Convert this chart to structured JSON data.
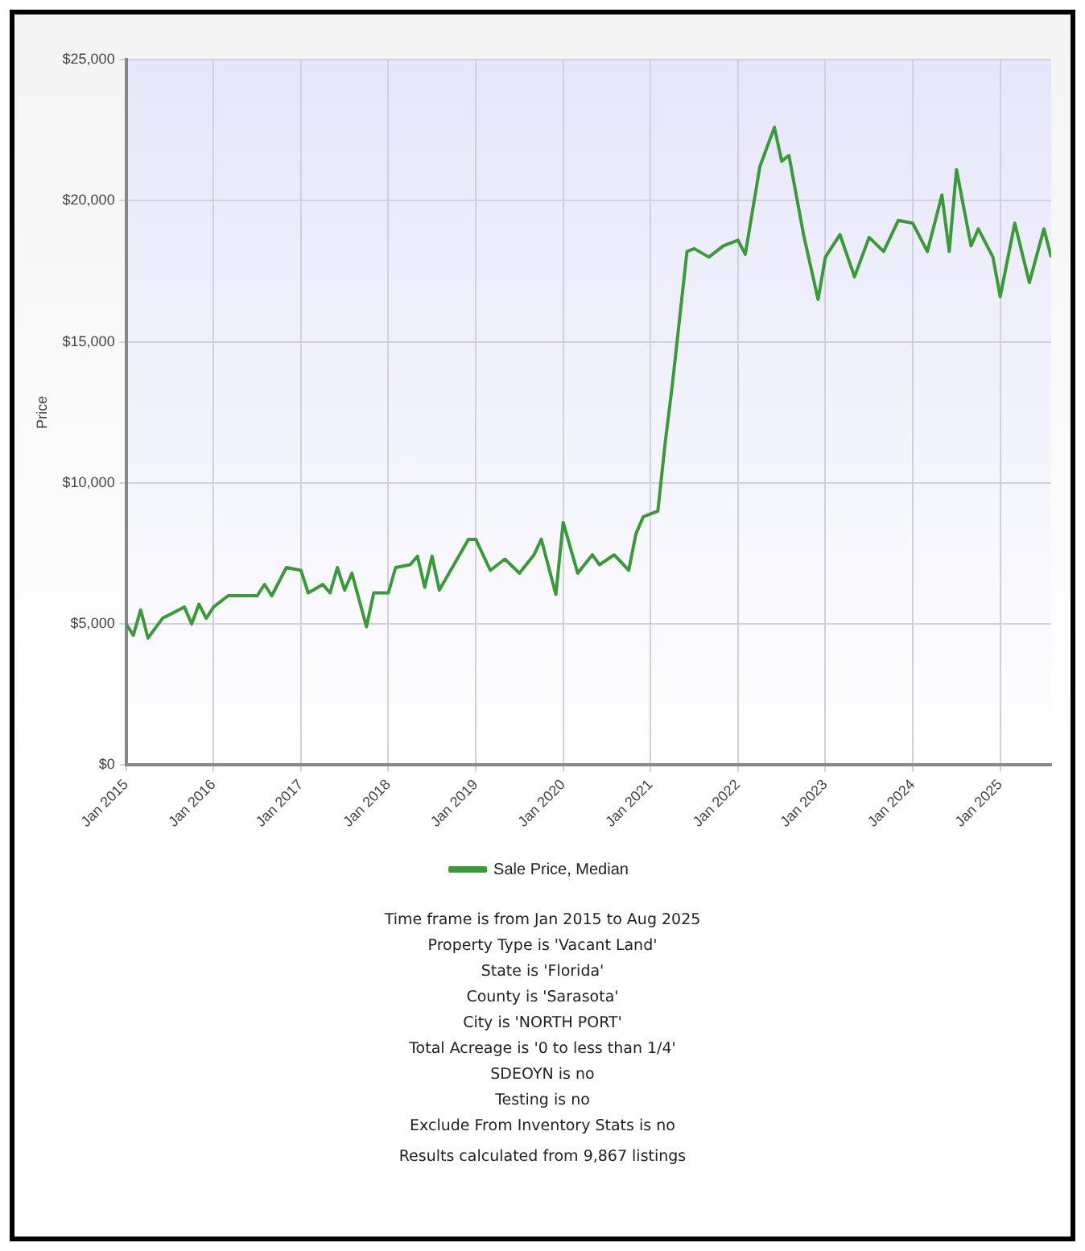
{
  "chart_data": {
    "type": "line",
    "ylabel": "Price",
    "legend": "bottom",
    "grid": true,
    "marker": "none",
    "line_style": "solid",
    "xlim": [
      "2015-01",
      "2025-08"
    ],
    "xticks": [
      {
        "value": "2015-01",
        "label": "Jan 2015"
      },
      {
        "value": "2016-01",
        "label": "Jan 2016"
      },
      {
        "value": "2017-01",
        "label": "Jan 2017"
      },
      {
        "value": "2018-01",
        "label": "Jan 2018"
      },
      {
        "value": "2019-01",
        "label": "Jan 2019"
      },
      {
        "value": "2020-01",
        "label": "Jan 2020"
      },
      {
        "value": "2021-01",
        "label": "Jan 2021"
      },
      {
        "value": "2022-01",
        "label": "Jan 2022"
      },
      {
        "value": "2023-01",
        "label": "Jan 2023"
      },
      {
        "value": "2024-01",
        "label": "Jan 2024"
      },
      {
        "value": "2025-01",
        "label": "Jan 2025"
      }
    ],
    "ylim": [
      0,
      25000
    ],
    "yticks": [
      {
        "value": 0,
        "label": "$0"
      },
      {
        "value": 5000,
        "label": "$5,000"
      },
      {
        "value": 10000,
        "label": "$10,000"
      },
      {
        "value": 15000,
        "label": "$15,000"
      },
      {
        "value": 20000,
        "label": "$20,000"
      },
      {
        "value": 25000,
        "label": "$25,000"
      }
    ],
    "x": [
      "2015-01",
      "2015-02",
      "2015-03",
      "2015-04",
      "2015-06",
      "2015-09",
      "2015-10",
      "2015-11",
      "2015-12",
      "2016-01",
      "2016-03",
      "2016-07",
      "2016-08",
      "2016-09",
      "2016-11",
      "2017-01",
      "2017-02",
      "2017-04",
      "2017-05",
      "2017-06",
      "2017-07",
      "2017-08",
      "2017-10",
      "2017-11",
      "2018-01",
      "2018-02",
      "2018-04",
      "2018-05",
      "2018-06",
      "2018-07",
      "2018-08",
      "2018-10",
      "2018-12",
      "2019-01",
      "2019-03",
      "2019-05",
      "2019-07",
      "2019-09",
      "2019-10",
      "2019-12",
      "2020-01",
      "2020-03",
      "2020-05",
      "2020-06",
      "2020-08",
      "2020-10",
      "2020-11",
      "2020-12",
      "2021-02",
      "2021-03",
      "2021-04",
      "2021-06",
      "2021-07",
      "2021-09",
      "2021-11",
      "2022-01",
      "2022-02",
      "2022-04",
      "2022-06",
      "2022-07",
      "2022-08",
      "2022-10",
      "2022-12",
      "2023-01",
      "2023-03",
      "2023-05",
      "2023-07",
      "2023-09",
      "2023-11",
      "2024-01",
      "2024-03",
      "2024-05",
      "2024-06",
      "2024-07",
      "2024-09",
      "2024-10",
      "2024-12",
      "2025-01",
      "2025-03",
      "2025-05",
      "2025-07",
      "2025-08"
    ],
    "series": [
      {
        "name": "Sale Price, Median",
        "color": "#3a9a3a",
        "values": [
          5000,
          4600,
          5500,
          4500,
          5200,
          5600,
          5000,
          5700,
          5200,
          5600,
          6000,
          6000,
          6400,
          6000,
          7000,
          6900,
          6100,
          6400,
          6100,
          7000,
          6200,
          6800,
          4900,
          6100,
          6100,
          7000,
          7100,
          7400,
          6300,
          7400,
          6200,
          7100,
          8000,
          8000,
          6900,
          7300,
          6800,
          7450,
          8000,
          6050,
          8600,
          6800,
          7450,
          7100,
          7450,
          6900,
          8200,
          8800,
          9000,
          11400,
          13500,
          18200,
          18300,
          18000,
          18400,
          18600,
          18100,
          21200,
          22600,
          21400,
          21600,
          18800,
          16500,
          18000,
          18800,
          17300,
          18700,
          18200,
          19300,
          19200,
          18200,
          20200,
          18200,
          21100,
          18400,
          19000,
          18000,
          16600,
          19200,
          17100,
          19000,
          18000
        ]
      }
    ],
    "annotations": [
      "Time frame is from Jan 2015 to Aug 2025",
      "Property Type is 'Vacant Land'",
      "State is 'Florida'",
      "County is 'Sarasota'",
      "City is 'NORTH PORT'",
      "Total Acreage is '0 to less than 1/4'",
      "SDEOYN is no",
      "Testing is no",
      "Exclude From Inventory Stats is no",
      "Results calculated from 9,867 listings"
    ]
  }
}
